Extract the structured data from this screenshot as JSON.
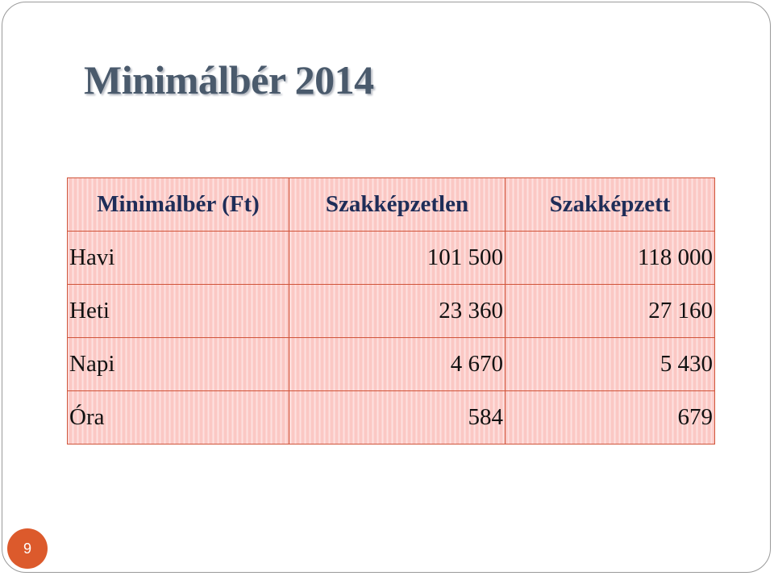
{
  "title": "Minimálbér 2014",
  "table": {
    "header": [
      "Minimálbér (Ft)",
      "Szakképzetlen",
      "Szakképzett"
    ],
    "rows": [
      [
        "Havi",
        "101 500",
        "118 000"
      ],
      [
        "Heti",
        "23 360",
        "27 160"
      ],
      [
        "Napi",
        "4 670",
        "5 430"
      ],
      [
        "Óra",
        "584",
        "679"
      ]
    ]
  },
  "page_number": "9"
}
